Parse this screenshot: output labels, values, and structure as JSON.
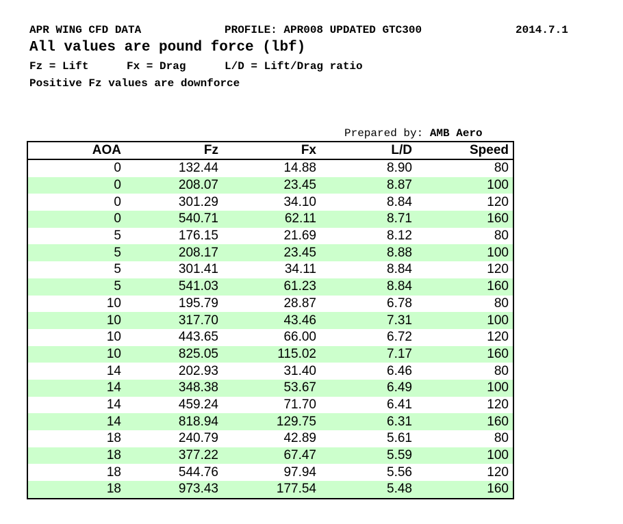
{
  "header": {
    "title": "APR WING CFD DATA",
    "profile": "PROFILE: APR008 UPDATED GTC300",
    "date": "2014.7.1",
    "units": "All values are pound force (lbf)",
    "legend": [
      "Fz = Lift",
      "Fx = Drag",
      "L/D = Lift/Drag ratio"
    ],
    "note": "Positive Fz values are downforce"
  },
  "table": {
    "prepared_by": {
      "label": "Prepared by:",
      "name": "AMB Aero"
    },
    "columns": [
      "AOA",
      "Fz",
      "Fx",
      "L/D",
      "Speed"
    ],
    "rows": [
      [
        "0",
        "132.44",
        "14.88",
        "8.90",
        "80"
      ],
      [
        "0",
        "208.07",
        "23.45",
        "8.87",
        "100"
      ],
      [
        "0",
        "301.29",
        "34.10",
        "8.84",
        "120"
      ],
      [
        "0",
        "540.71",
        "62.11",
        "8.71",
        "160"
      ],
      [
        "5",
        "176.15",
        "21.69",
        "8.12",
        "80"
      ],
      [
        "5",
        "208.17",
        "23.45",
        "8.88",
        "100"
      ],
      [
        "5",
        "301.41",
        "34.11",
        "8.84",
        "120"
      ],
      [
        "5",
        "541.03",
        "61.23",
        "8.84",
        "160"
      ],
      [
        "10",
        "195.79",
        "28.87",
        "6.78",
        "80"
      ],
      [
        "10",
        "317.70",
        "43.46",
        "7.31",
        "100"
      ],
      [
        "10",
        "443.65",
        "66.00",
        "6.72",
        "120"
      ],
      [
        "10",
        "825.05",
        "115.02",
        "7.17",
        "160"
      ],
      [
        "14",
        "202.93",
        "31.40",
        "6.46",
        "80"
      ],
      [
        "14",
        "348.38",
        "53.67",
        "6.49",
        "100"
      ],
      [
        "14",
        "459.24",
        "71.70",
        "6.41",
        "120"
      ],
      [
        "14",
        "818.94",
        "129.75",
        "6.31",
        "160"
      ],
      [
        "18",
        "240.79",
        "42.89",
        "5.61",
        "80"
      ],
      [
        "18",
        "377.22",
        "67.47",
        "5.59",
        "100"
      ],
      [
        "18",
        "544.76",
        "97.94",
        "5.56",
        "120"
      ],
      [
        "18",
        "973.43",
        "177.54",
        "5.48",
        "160"
      ]
    ]
  }
}
